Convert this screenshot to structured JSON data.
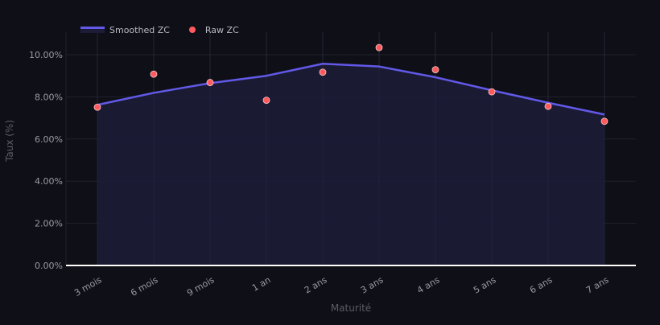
{
  "legend": {
    "items": [
      {
        "label": "Smoothed ZC",
        "type": "line",
        "color": "#6259e8"
      },
      {
        "label": "Raw ZC",
        "type": "marker",
        "color": "#ff5a5f"
      }
    ]
  },
  "axes": {
    "xlabel": "Maturité",
    "ylabel": "Taux (%)",
    "yticks": [
      "0.00%",
      "2.00%",
      "4.00%",
      "6.00%",
      "8.00%",
      "10.00%"
    ]
  },
  "colors": {
    "background": "#0f0f17",
    "grid": "#22222e",
    "smoothed_line": "#6259e8",
    "area_fill": "#1c1c38",
    "raw_marker": "#ff5a5f",
    "axis_text": "#9a9aa6",
    "axis_title": "#5c5c68",
    "zero_line": "#ffffff"
  },
  "chart_data": {
    "type": "line",
    "title": "",
    "xlabel": "Maturité",
    "ylabel": "Taux (%)",
    "categories": [
      "3 mois",
      "6 mois",
      "9 mois",
      "1 an",
      "2 ans",
      "3 ans",
      "4 ans",
      "5 ans",
      "6 ans",
      "7 ans"
    ],
    "series": [
      {
        "name": "Smoothed ZC",
        "type": "line+area",
        "color": "#6259e8",
        "values": [
          7.62,
          8.19,
          8.65,
          9.0,
          9.57,
          9.44,
          8.93,
          8.31,
          7.72,
          7.16
        ]
      },
      {
        "name": "Raw ZC",
        "type": "scatter",
        "color": "#ff5a5f",
        "values": [
          7.51,
          9.08,
          8.68,
          7.84,
          9.17,
          10.34,
          9.29,
          8.24,
          7.55,
          6.84
        ]
      }
    ],
    "ylim": [
      0,
      11.1
    ],
    "ytick_values": [
      0,
      2,
      4,
      6,
      8,
      10
    ],
    "ytick_format": "0.00%",
    "grid": true,
    "legend_position": "top-left, horizontal"
  }
}
